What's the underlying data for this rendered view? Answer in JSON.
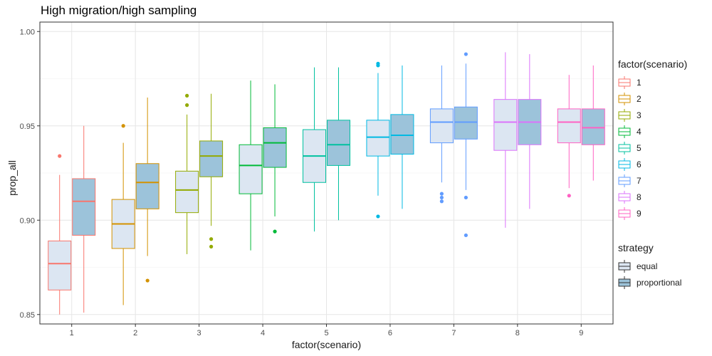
{
  "chart_data": {
    "type": "boxplot",
    "title": "High migration/high sampling",
    "xlabel": "factor(scenario)",
    "ylabel": "prop_all",
    "categories": [
      "1",
      "2",
      "3",
      "4",
      "5",
      "6",
      "7",
      "8",
      "9"
    ],
    "ylim": [
      0.845,
      1.005
    ],
    "yticks": [
      0.85,
      0.9,
      0.95,
      1.0
    ],
    "ytick_labels": [
      "0.85",
      "0.90",
      "0.95",
      "1.00"
    ],
    "grid": true,
    "legend_placement": "right",
    "colors": {
      "1": "#F8766D",
      "2": "#D39200",
      "3": "#93AA00",
      "4": "#00BA38",
      "5": "#00C19F",
      "6": "#00B9E3",
      "7": "#619CFF",
      "8": "#DB72FB",
      "9": "#FF61C3"
    },
    "fills": {
      "equal": "#DCE6F2",
      "proportional": "#9CC3DA"
    },
    "series": [
      {
        "name": "equal",
        "boxes": [
          {
            "scenario": "1",
            "lower": 0.85,
            "q1": 0.863,
            "median": 0.877,
            "q3": 0.889,
            "upper": 0.924,
            "outliers": [
              0.934
            ]
          },
          {
            "scenario": "2",
            "lower": 0.855,
            "q1": 0.885,
            "median": 0.898,
            "q3": 0.911,
            "upper": 0.941,
            "outliers": [
              0.95
            ]
          },
          {
            "scenario": "3",
            "lower": 0.882,
            "q1": 0.904,
            "median": 0.916,
            "q3": 0.926,
            "upper": 0.956,
            "outliers": [
              0.961,
              0.966
            ]
          },
          {
            "scenario": "4",
            "lower": 0.884,
            "q1": 0.914,
            "median": 0.929,
            "q3": 0.94,
            "upper": 0.974,
            "outliers": []
          },
          {
            "scenario": "5",
            "lower": 0.894,
            "q1": 0.92,
            "median": 0.934,
            "q3": 0.948,
            "upper": 0.981,
            "outliers": []
          },
          {
            "scenario": "6",
            "lower": 0.913,
            "q1": 0.934,
            "median": 0.944,
            "q3": 0.953,
            "upper": 0.978,
            "outliers": [
              0.902,
              0.982,
              0.983
            ]
          },
          {
            "scenario": "7",
            "lower": 0.92,
            "q1": 0.941,
            "median": 0.952,
            "q3": 0.959,
            "upper": 0.982,
            "outliers": [
              0.91,
              0.912,
              0.914
            ]
          },
          {
            "scenario": "8",
            "lower": 0.896,
            "q1": 0.937,
            "median": 0.952,
            "q3": 0.964,
            "upper": 0.989,
            "outliers": []
          },
          {
            "scenario": "9",
            "lower": 0.917,
            "q1": 0.941,
            "median": 0.952,
            "q3": 0.959,
            "upper": 0.977,
            "outliers": [
              0.913
            ]
          }
        ]
      },
      {
        "name": "proportional",
        "boxes": [
          {
            "scenario": "1",
            "lower": 0.851,
            "q1": 0.892,
            "median": 0.91,
            "q3": 0.922,
            "upper": 0.95,
            "outliers": []
          },
          {
            "scenario": "2",
            "lower": 0.881,
            "q1": 0.906,
            "median": 0.92,
            "q3": 0.93,
            "upper": 0.965,
            "outliers": [
              0.868
            ]
          },
          {
            "scenario": "3",
            "lower": 0.897,
            "q1": 0.923,
            "median": 0.934,
            "q3": 0.942,
            "upper": 0.967,
            "outliers": [
              0.886,
              0.89
            ]
          },
          {
            "scenario": "4",
            "lower": 0.902,
            "q1": 0.928,
            "median": 0.941,
            "q3": 0.949,
            "upper": 0.972,
            "outliers": [
              0.894
            ]
          },
          {
            "scenario": "5",
            "lower": 0.9,
            "q1": 0.929,
            "median": 0.94,
            "q3": 0.953,
            "upper": 0.981,
            "outliers": []
          },
          {
            "scenario": "6",
            "lower": 0.906,
            "q1": 0.935,
            "median": 0.945,
            "q3": 0.956,
            "upper": 0.982,
            "outliers": []
          },
          {
            "scenario": "7",
            "lower": 0.916,
            "q1": 0.943,
            "median": 0.952,
            "q3": 0.96,
            "upper": 0.983,
            "outliers": [
              0.892,
              0.912,
              0.988
            ]
          },
          {
            "scenario": "8",
            "lower": 0.906,
            "q1": 0.94,
            "median": 0.952,
            "q3": 0.964,
            "upper": 0.988,
            "outliers": []
          },
          {
            "scenario": "9",
            "lower": 0.921,
            "q1": 0.94,
            "median": 0.949,
            "q3": 0.959,
            "upper": 0.982,
            "outliers": []
          }
        ]
      }
    ],
    "legend_scenario": {
      "title": "factor(scenario)",
      "items": [
        "1",
        "2",
        "3",
        "4",
        "5",
        "6",
        "7",
        "8",
        "9"
      ]
    },
    "legend_strategy": {
      "title": "strategy",
      "items": [
        "equal",
        "proportional"
      ]
    }
  }
}
